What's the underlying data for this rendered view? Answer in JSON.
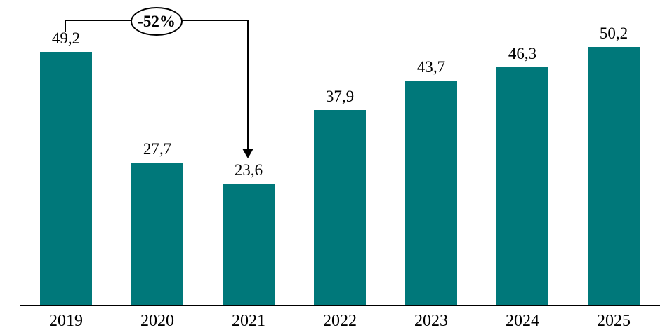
{
  "chart_data": {
    "type": "bar",
    "title": "",
    "xlabel": "",
    "ylabel": "",
    "categories": [
      "2019",
      "2020",
      "2021",
      "2022",
      "2023",
      "2024",
      "2025"
    ],
    "values": [
      49.2,
      27.7,
      23.6,
      37.9,
      43.7,
      46.3,
      50.2
    ],
    "value_labels": [
      "49,2",
      "27,7",
      "23,6",
      "37,9",
      "43,7",
      "46,3",
      "50,2"
    ],
    "ylim": [
      0,
      55
    ],
    "grid": false,
    "legend": false,
    "bar_color": "#00787A",
    "axis_color": "#000000",
    "annotation": {
      "label": "-52%",
      "from_category": "2019",
      "to_category": "2021"
    }
  }
}
